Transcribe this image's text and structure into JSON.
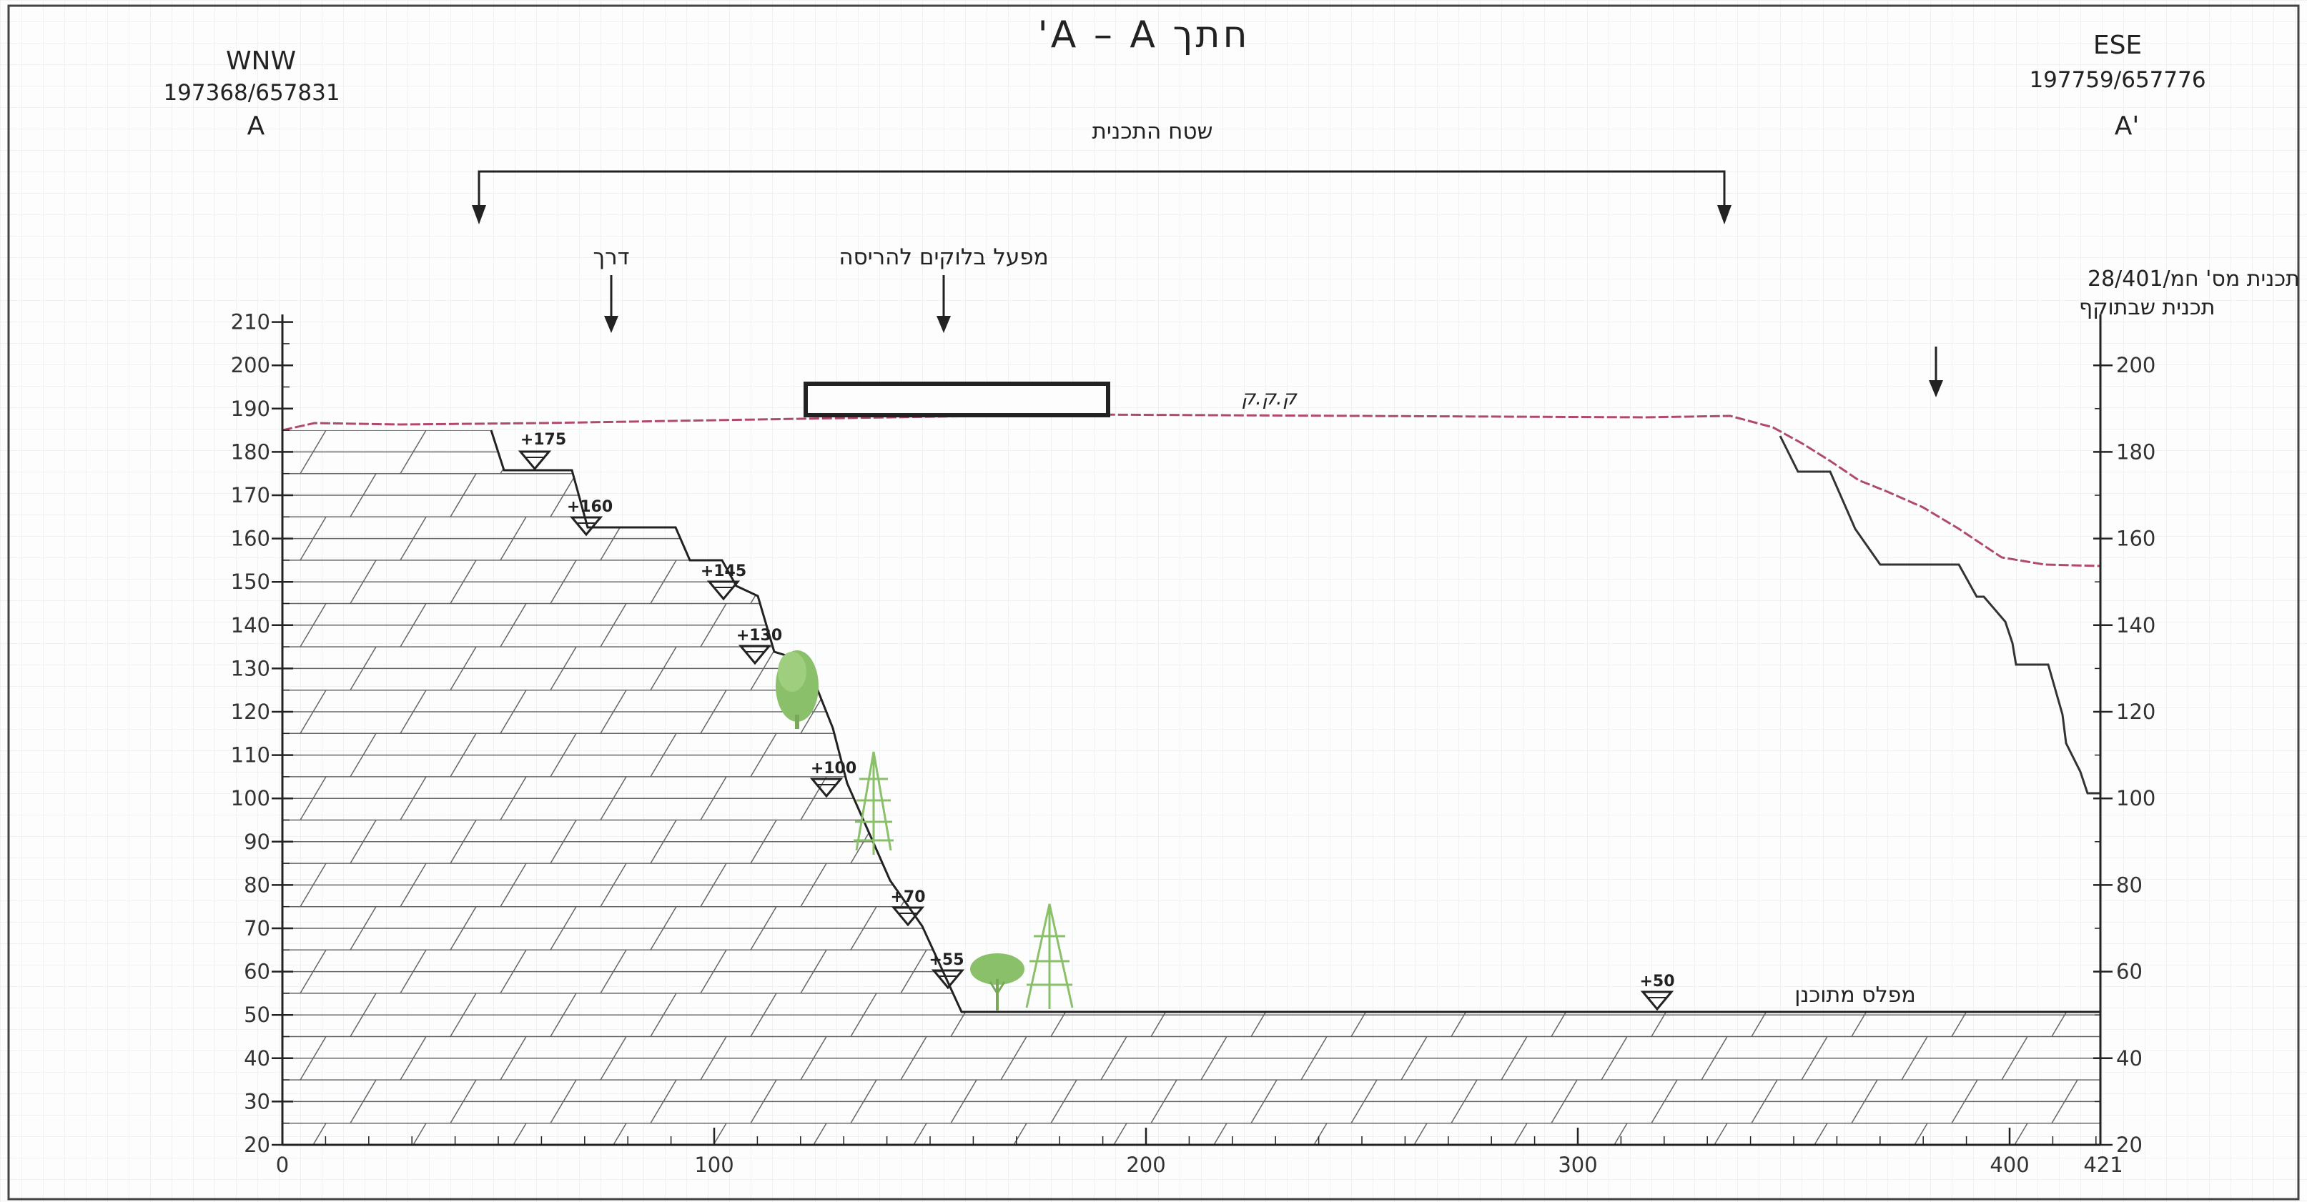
{
  "title": "חתך A – A'",
  "left_end": {
    "direction": "WNW",
    "coords": "197368/657831",
    "label": "A"
  },
  "right_end": {
    "direction": "ESE",
    "coords": "197759/657776",
    "label": "A'"
  },
  "plan_area_label": "שטח התכנית",
  "road_label": "דרך",
  "factory_label": "מפעל בלוקים להריסה",
  "terraces_label_line1": "מדרגות לפי תכנית מס' חמ/28/401",
  "terraces_label_line2": "תכנית שבתוקף",
  "ground_label": "ק.ק.ק",
  "floor_label": "מפלס מתוכנן",
  "benches": [
    "+175",
    "+160",
    "+145",
    "+130",
    "+100",
    "+70",
    "+55",
    "+50"
  ],
  "left_axis_ticks": [
    "210",
    "200",
    "190",
    "180",
    "170",
    "160",
    "150",
    "140",
    "130",
    "120",
    "110",
    "100",
    "90",
    "80",
    "70",
    "60",
    "50",
    "40",
    "30",
    "20"
  ],
  "right_axis_ticks": [
    "200",
    "180",
    "160",
    "140",
    "120",
    "100",
    "80",
    "60",
    "40",
    "20"
  ],
  "x_axis_ticks": [
    "0",
    "100",
    "200",
    "300",
    "400",
    "421"
  ],
  "colors": {
    "ground_line": "#b04a6a",
    "ink": "#222222",
    "tree_green": "#8ac06a",
    "grid_line": "#e9eef2"
  }
}
